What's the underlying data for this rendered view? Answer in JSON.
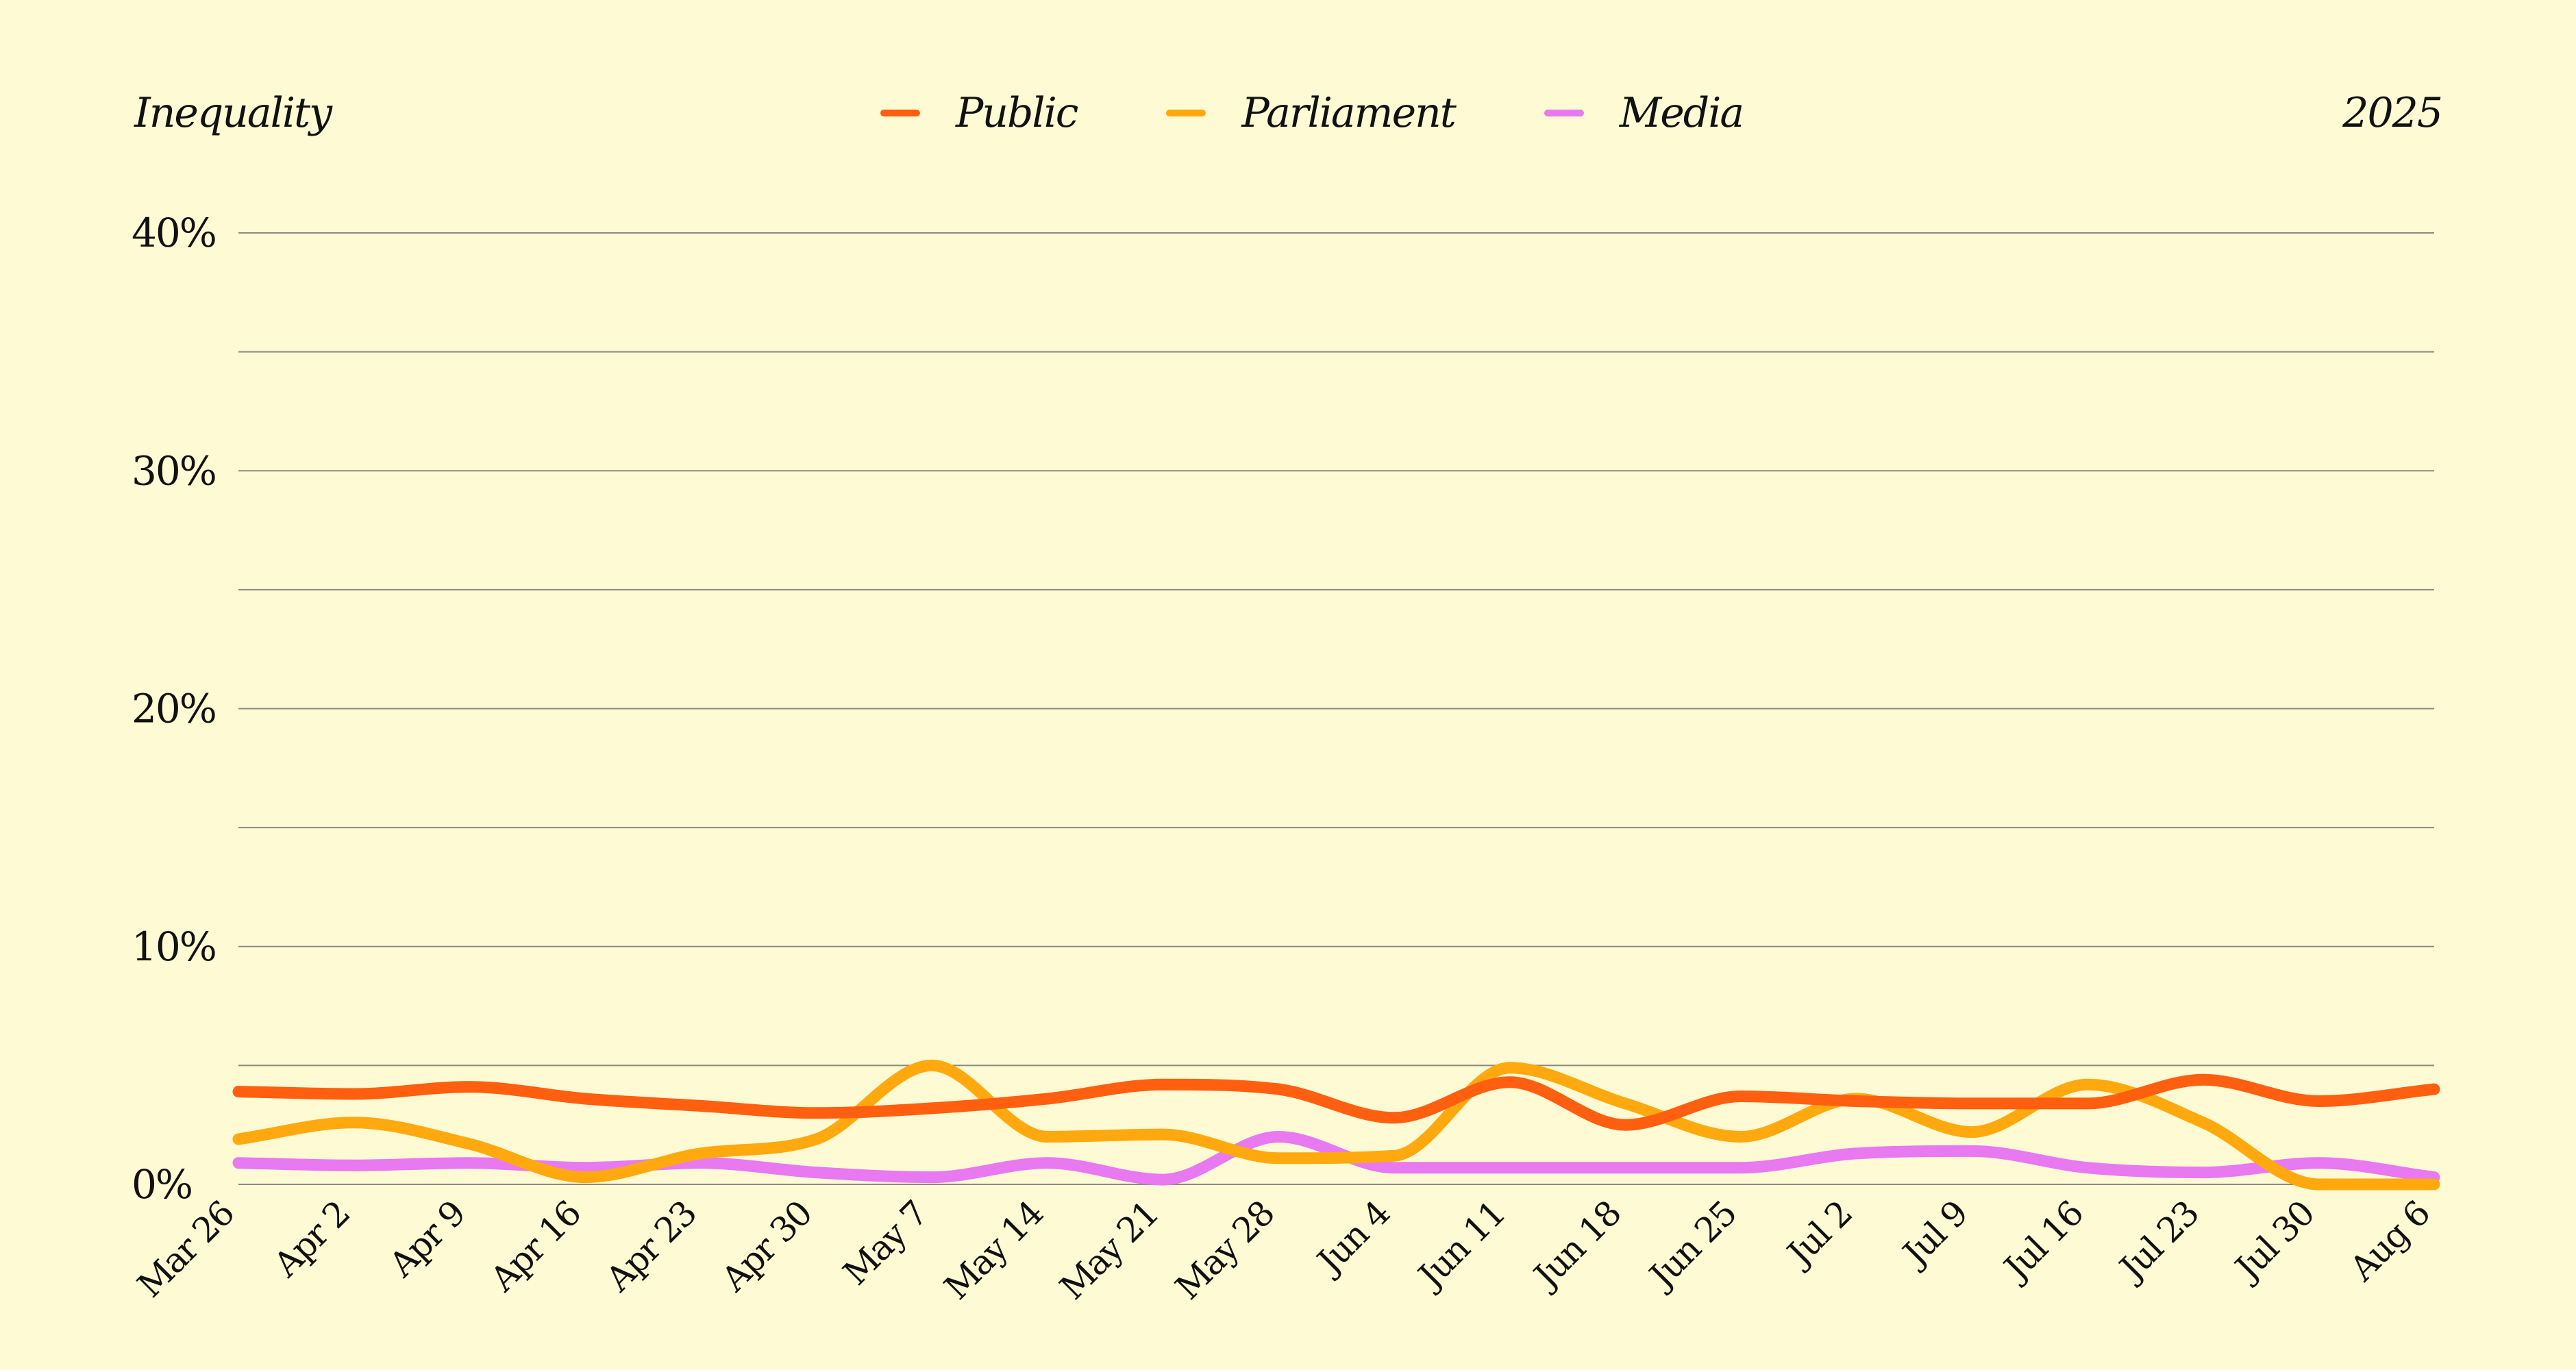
{
  "chart_data": {
    "type": "line",
    "title": "Inequality",
    "corner_label": "2025",
    "xlabel": "",
    "ylabel": "",
    "ylim": [
      0,
      40
    ],
    "yticks": [
      "0%",
      "10%",
      "20%",
      "30%",
      "40%"
    ],
    "ytick_values": [
      0,
      10,
      20,
      30,
      40
    ],
    "gridlines": [
      0,
      5,
      10,
      15,
      20,
      25,
      30,
      35,
      40
    ],
    "grid": true,
    "legend_position": "top-center",
    "categories": [
      "Mar 26",
      "Apr 2",
      "Apr 9",
      "Apr 16",
      "Apr 23",
      "Apr 30",
      "May 7",
      "May 14",
      "May 21",
      "May 28",
      "Jun 4",
      "Jun 11",
      "Jun 18",
      "Jun 25",
      "Jul 2",
      "Jul 9",
      "Jul 16",
      "Jul 23",
      "Jul 30",
      "Aug 6"
    ],
    "series": [
      {
        "name": "Public",
        "color": "#FF5F0F",
        "values": [
          3.9,
          3.8,
          4.1,
          3.6,
          3.3,
          3.0,
          3.2,
          3.6,
          4.2,
          4.0,
          2.8,
          4.3,
          2.5,
          3.7,
          3.5,
          3.4,
          3.4,
          4.4,
          3.5,
          4.0
        ]
      },
      {
        "name": "Parliament",
        "color": "#FFA90F",
        "values": [
          1.9,
          2.6,
          1.7,
          0.3,
          1.3,
          1.9,
          5.0,
          2.0,
          2.1,
          1.1,
          1.2,
          4.9,
          3.4,
          2.0,
          3.6,
          2.2,
          4.2,
          2.6,
          0.0,
          0.0
        ]
      },
      {
        "name": "Media",
        "color": "#E879F0",
        "values": [
          0.9,
          0.8,
          0.9,
          0.7,
          0.9,
          0.5,
          0.3,
          0.9,
          0.2,
          2.0,
          0.7,
          0.7,
          0.7,
          0.7,
          1.3,
          1.4,
          0.7,
          0.5,
          0.9,
          0.3
        ]
      }
    ]
  },
  "colors": {
    "background": "#FEFAD4",
    "grid": "#8A8A80",
    "text": "#111111"
  }
}
